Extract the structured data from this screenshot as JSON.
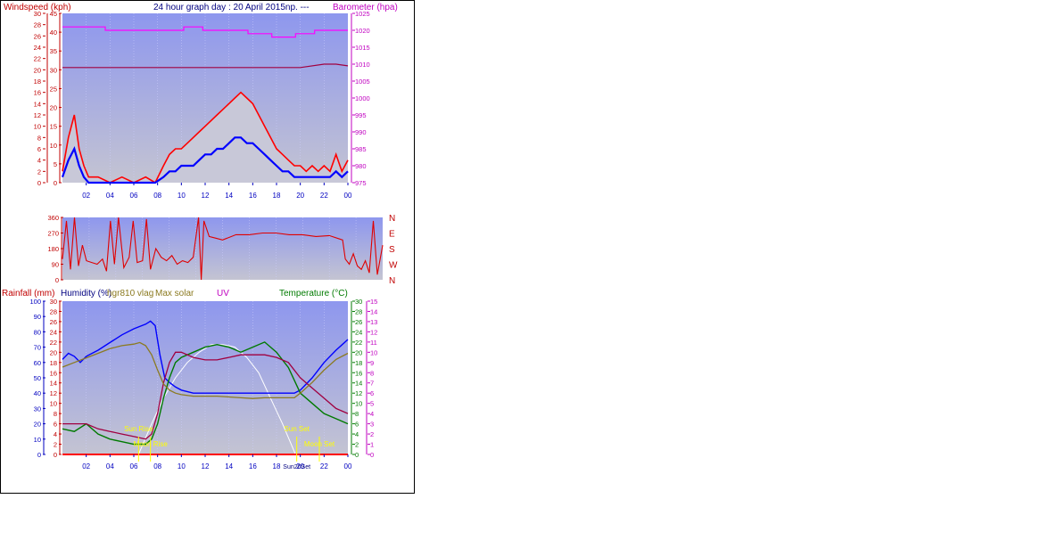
{
  "header": {
    "title": "24 hour graph day : 20 April 2015np. ---",
    "left_axis_label": "Windspeed (kph)",
    "right_axis_label": "Barometer (hpa)"
  },
  "bottom_header": {
    "rainfall": "Rainfall (mm)",
    "humidity": "Humidity (%)",
    "hgr": "hgr810 vlag",
    "solar": "Max solar",
    "uv": "UV",
    "temperature": "Temperature (°C)"
  },
  "annotations": {
    "sun_rise": "Sun Rise",
    "moon_rise": "Moon Rise",
    "sun_set": "Sun Set",
    "moon_set": "Moon Set",
    "sun_overlap": "Sun20Set"
  },
  "colors": {
    "plot_bg_top": "#8e97ee",
    "plot_bg_bottom": "#c4c4d2",
    "wind_gust": "#ff0000",
    "wind_avg": "#0000ff",
    "barometer": "#ff00ff",
    "barometer_inner": "#a00040",
    "direction": "#e00000",
    "humidity": "#0000ff",
    "temperature": "#007a00",
    "dewpoint": "#a00040",
    "hgr": "#8b7a20",
    "solar": "#ffffff",
    "annotation": "#ffff00",
    "axis_red": "#c00000",
    "axis_blue": "#0000c0",
    "axis_magenta": "#c000c0",
    "axis_green": "#007a00"
  },
  "chart_data": [
    {
      "type": "line",
      "panel": "wind",
      "x_ticks": [
        "02",
        "04",
        "06",
        "08",
        "10",
        "12",
        "14",
        "16",
        "18",
        "20",
        "22",
        "00"
      ],
      "y_left_ticks": [
        "0",
        "2",
        "4",
        "6",
        "8",
        "10",
        "12",
        "14",
        "16",
        "18",
        "20",
        "22",
        "24",
        "26",
        "28",
        "30"
      ],
      "y_left_ticks_inner": [
        "0",
        "5",
        "10",
        "15",
        "20",
        "25",
        "30",
        "35",
        "40",
        "45"
      ],
      "y_right_ticks": [
        "975",
        "980",
        "985",
        "990",
        "995",
        "1000",
        "1005",
        "1010",
        "1015",
        "1020",
        "1025"
      ],
      "ylim_left": [
        0,
        30
      ],
      "ylim_right": [
        975,
        1025
      ],
      "xlim": [
        0,
        24
      ],
      "series": [
        {
          "role": "gust",
          "x": [
            0.0,
            0.5,
            1.0,
            1.4,
            1.8,
            2.2,
            3.0,
            4.0,
            5.0,
            6.0,
            7.0,
            7.8,
            8.5,
            9.0,
            9.5,
            10.0,
            10.5,
            11.0,
            11.5,
            12.0,
            12.5,
            13.0,
            13.5,
            14.0,
            14.5,
            15.0,
            15.5,
            16.0,
            16.5,
            17.0,
            17.5,
            18.0,
            18.5,
            19.0,
            19.5,
            20.0,
            20.5,
            21.0,
            21.5,
            22.0,
            22.5,
            23.0,
            23.5,
            24.0
          ],
          "values": [
            2,
            8,
            12,
            6,
            3,
            1,
            1,
            0,
            1,
            0,
            1,
            0,
            3,
            5,
            6,
            6,
            7,
            8,
            9,
            10,
            11,
            12,
            13,
            14,
            15,
            16,
            15,
            14,
            12,
            10,
            8,
            6,
            5,
            4,
            3,
            3,
            2,
            3,
            2,
            3,
            2,
            5,
            2,
            4
          ]
        },
        {
          "role": "average",
          "x": [
            0.0,
            0.5,
            1.0,
            1.4,
            1.8,
            2.2,
            3.0,
            4.0,
            5.0,
            6.0,
            7.0,
            7.8,
            8.5,
            9.0,
            9.5,
            10.0,
            10.5,
            11.0,
            11.5,
            12.0,
            12.5,
            13.0,
            13.5,
            14.0,
            14.5,
            15.0,
            15.5,
            16.0,
            16.5,
            17.0,
            17.5,
            18.0,
            18.5,
            19.0,
            19.5,
            20.0,
            20.5,
            21.0,
            21.5,
            22.0,
            22.5,
            23.0,
            23.5,
            24.0
          ],
          "values": [
            1,
            4,
            6,
            3,
            1,
            0,
            0,
            0,
            0,
            0,
            0,
            0,
            1,
            2,
            2,
            3,
            3,
            3,
            4,
            5,
            5,
            6,
            6,
            7,
            8,
            8,
            7,
            7,
            6,
            5,
            4,
            3,
            2,
            2,
            1,
            1,
            1,
            1,
            1,
            1,
            1,
            2,
            1,
            2
          ]
        },
        {
          "role": "barometer",
          "x": [
            0,
            2.2,
            3.6,
            4.5,
            7.6,
            10.2,
            11.8,
            14.6,
            15.6,
            16.8,
            17.6,
            18.4,
            19.6,
            20.4,
            21.2,
            22.0,
            22.8,
            23.4,
            24.0
          ],
          "values": [
            1021,
            1021,
            1020,
            1020,
            1020,
            1021,
            1020,
            1020,
            1019,
            1019,
            1018,
            1018,
            1019,
            1019,
            1020,
            1020,
            1020,
            1020,
            1020
          ]
        },
        {
          "role": "barometer_inner",
          "x": [
            0,
            3,
            6,
            9,
            12,
            14,
            16,
            18,
            20,
            22,
            23,
            24
          ],
          "values": [
            1009,
            1009,
            1009,
            1009,
            1009,
            1009,
            1009,
            1009,
            1009,
            1010,
            1010,
            1009.5
          ]
        }
      ]
    },
    {
      "type": "line",
      "panel": "direction",
      "y_ticks": [
        "0",
        "90",
        "180",
        "270",
        "360"
      ],
      "y_right_labels": [
        "N",
        "W",
        "S",
        "E",
        "N"
      ],
      "ylim": [
        0,
        360
      ],
      "xlim": [
        0,
        24
      ],
      "series": [
        {
          "role": "direction",
          "x": [
            0,
            0.3,
            0.6,
            0.9,
            1.2,
            1.5,
            1.8,
            2.2,
            2.6,
            3.0,
            3.3,
            3.6,
            3.9,
            4.2,
            4.6,
            5.0,
            5.3,
            5.6,
            6.0,
            6.3,
            6.6,
            7.0,
            7.4,
            7.8,
            8.2,
            8.6,
            9.0,
            9.4,
            9.8,
            10.2,
            10.4,
            10.6,
            11.0,
            11.5,
            12.0,
            13.0,
            14.0,
            15.0,
            16.0,
            17.0,
            18.0,
            19.0,
            20.0,
            21.0,
            21.2,
            21.5,
            21.8,
            22.1,
            22.4,
            22.7,
            23.0,
            23.3,
            23.6,
            24.0
          ],
          "values": [
            120,
            340,
            60,
            360,
            80,
            200,
            110,
            100,
            90,
            120,
            50,
            340,
            90,
            360,
            70,
            130,
            340,
            100,
            110,
            350,
            60,
            180,
            130,
            110,
            140,
            90,
            110,
            100,
            130,
            360,
            0,
            340,
            250,
            240,
            230,
            260,
            260,
            270,
            270,
            260,
            260,
            250,
            255,
            230,
            120,
            90,
            150,
            80,
            60,
            110,
            40,
            340,
            30,
            200
          ]
        }
      ]
    },
    {
      "type": "line",
      "panel": "climate",
      "y_left_outer_ticks": [
        "0",
        "10",
        "20",
        "30",
        "40",
        "50",
        "60",
        "70",
        "80",
        "90",
        "100"
      ],
      "y_left_inner_ticks": [
        "0",
        "2",
        "4",
        "6",
        "8",
        "10",
        "12",
        "14",
        "16",
        "18",
        "20",
        "22",
        "24",
        "26",
        "28",
        "30"
      ],
      "y_right_inner_ticks": [
        "0",
        "2",
        "4",
        "6",
        "8",
        "10",
        "12",
        "14",
        "16",
        "18",
        "20",
        "22",
        "24",
        "26",
        "28",
        "30"
      ],
      "y_right_outer_ticks": [
        "0",
        "1",
        "2",
        "3",
        "4",
        "5",
        "6",
        "7",
        "8",
        "9",
        "10",
        "11",
        "12",
        "13",
        "14",
        "15"
      ],
      "x_ticks": [
        "02",
        "04",
        "06",
        "08",
        "10",
        "12",
        "14",
        "16",
        "18",
        "20",
        "22",
        "00"
      ],
      "ylim_humidity": [
        0,
        100
      ],
      "ylim_temperature": [
        0,
        30
      ],
      "ylim_uv": [
        0,
        15
      ],
      "xlim": [
        0,
        24
      ],
      "series": [
        {
          "role": "humidity",
          "x": [
            0,
            0.5,
            1.0,
            1.5,
            2.0,
            3.0,
            4.0,
            5.0,
            6.0,
            7.0,
            7.4,
            7.8,
            8.2,
            8.6,
            9.0,
            9.5,
            10.0,
            11.0,
            12.0,
            13.0,
            14.0,
            15.0,
            16.0,
            17.0,
            18.0,
            19.0,
            19.5,
            20.0,
            21.0,
            22.0,
            23.0,
            24.0
          ],
          "values": [
            62,
            66,
            64,
            60,
            64,
            68,
            73,
            78,
            82,
            85,
            87,
            84,
            65,
            50,
            47,
            44,
            42,
            40,
            40,
            40,
            40,
            40,
            40,
            40,
            40,
            40,
            40,
            42,
            50,
            60,
            68,
            75
          ]
        },
        {
          "role": "temperature",
          "x": [
            0,
            1,
            2,
            3,
            4,
            5,
            6,
            7,
            7.5,
            8,
            8.5,
            9,
            9.5,
            10,
            11,
            12,
            13,
            14,
            15,
            16,
            17,
            18,
            19,
            20,
            21,
            22,
            23,
            24
          ],
          "values": [
            5,
            4.5,
            6,
            4,
            3,
            2.5,
            2,
            2,
            3,
            6,
            11,
            15,
            18,
            19,
            20,
            21,
            21.5,
            21,
            20,
            21,
            22,
            20,
            17,
            12,
            10,
            8,
            7,
            6
          ]
        },
        {
          "role": "dewpoint",
          "x": [
            0,
            1,
            2,
            3,
            4,
            5,
            6,
            7,
            7.5,
            8,
            8.5,
            9,
            9.5,
            10,
            11,
            12,
            13,
            14,
            15,
            16,
            17,
            18,
            19,
            20,
            21,
            22,
            23,
            24
          ],
          "values": [
            6,
            6,
            6,
            5,
            4.5,
            4,
            3.5,
            3,
            4,
            8,
            14,
            18,
            20,
            20,
            19,
            18.5,
            18.5,
            19,
            19.5,
            19.5,
            19.5,
            19,
            18,
            15,
            13,
            11,
            9,
            8
          ]
        },
        {
          "role": "hgr810",
          "x": [
            0,
            1,
            2,
            3,
            4,
            5,
            6,
            6.5,
            7,
            7.5,
            8,
            8.5,
            9,
            9.5,
            10,
            11,
            12,
            13,
            14,
            15,
            16,
            17,
            18,
            19,
            19.5,
            20,
            21,
            22,
            23,
            24
          ],
          "values": [
            57,
            60,
            63,
            66,
            69,
            71,
            72,
            73,
            71,
            65,
            55,
            46,
            42,
            40,
            39,
            38,
            38,
            38,
            37.5,
            37,
            36.5,
            37,
            37,
            37,
            37,
            40,
            47,
            55,
            62,
            66
          ]
        },
        {
          "role": "max_solar",
          "x": [
            6.4,
            7.5,
            8.5,
            9.5,
            10.5,
            11.5,
            12.5,
            13.5,
            14.5,
            15.5,
            16.5,
            17.5,
            18.5,
            19.6
          ],
          "values": [
            0,
            6,
            11,
            15,
            18,
            20,
            21.5,
            21.5,
            21,
            19,
            16,
            11,
            6,
            0
          ]
        }
      ],
      "events": {
        "sun_rise_hour": 6.4,
        "moon_rise_hour": 7.4,
        "sun_set_hour": 19.7,
        "moon_set_hour": 21.6
      }
    }
  ]
}
